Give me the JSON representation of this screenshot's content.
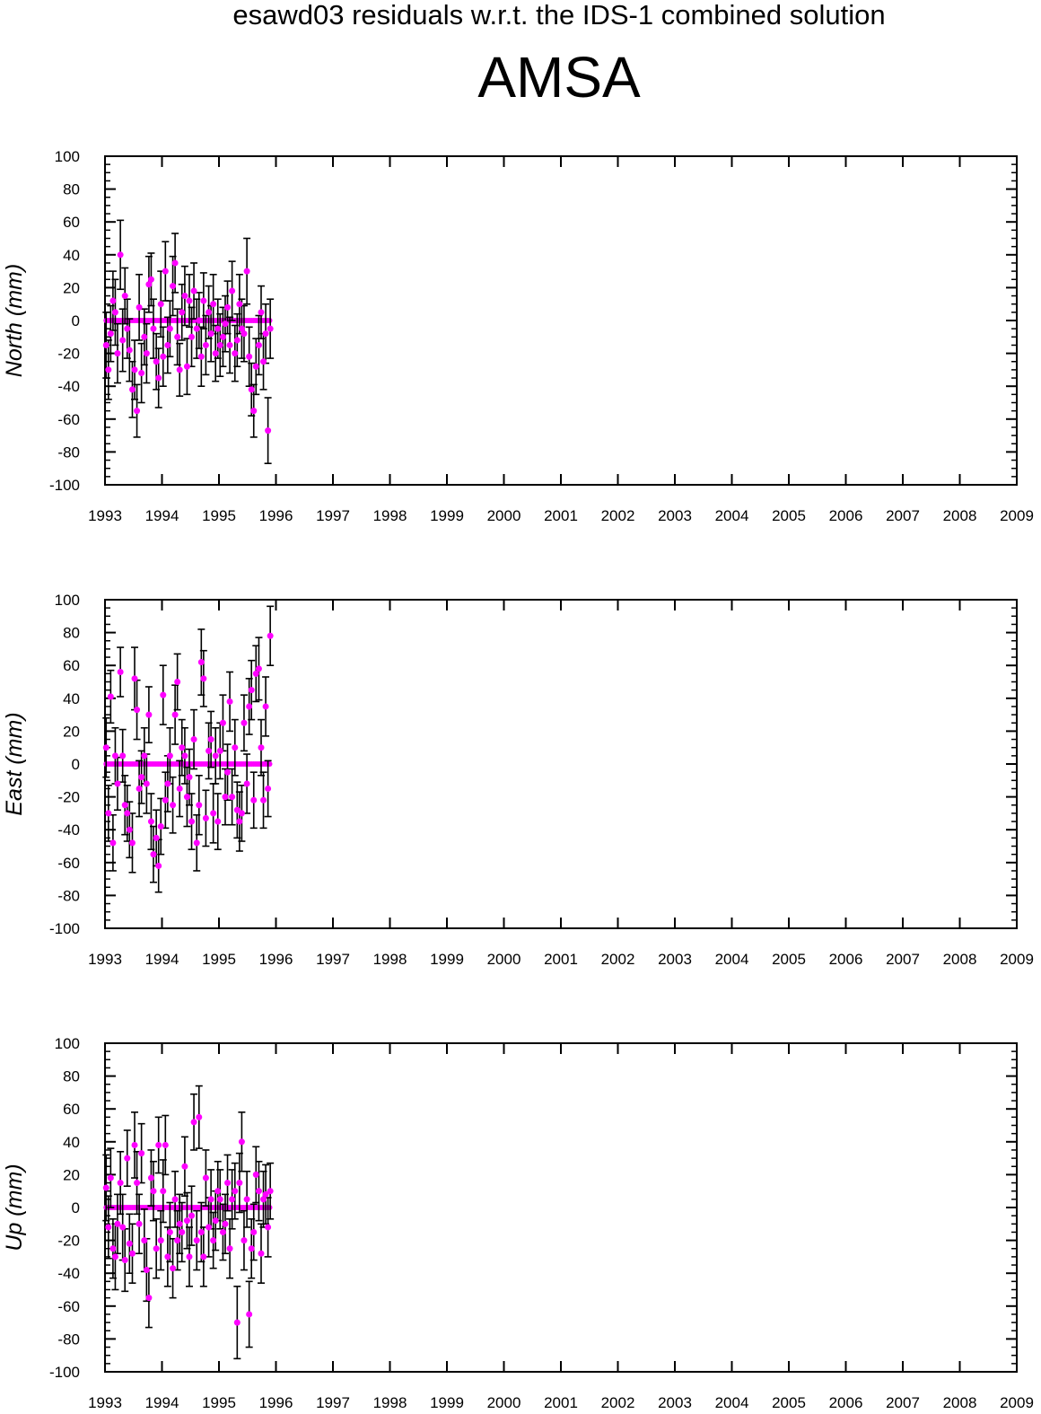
{
  "figure": {
    "subtitle": "esawd03 residuals w.r.t. the IDS-1 combined solution",
    "title": "AMSA"
  },
  "colors": {
    "marker": "#ff00ff",
    "errorbar": "#000000",
    "axis": "#000000",
    "background": "#ffffff"
  },
  "chart_data": [
    {
      "type": "scatter",
      "ylabel": "North (mm)",
      "xlim": [
        1993,
        2009
      ],
      "ylim": [
        -100,
        100
      ],
      "x_ticks": [
        "1993",
        "1994",
        "1995",
        "1996",
        "1997",
        "1998",
        "1999",
        "2000",
        "2001",
        "2002",
        "2003",
        "2004",
        "2005",
        "2006",
        "2007",
        "2008",
        "2009"
      ],
      "y_ticks": [
        "100",
        "80",
        "60",
        "40",
        "20",
        "0",
        "-20",
        "-40",
        "-60",
        "-80",
        "-100"
      ],
      "grid": false,
      "series": [
        {
          "x": [
            1993.02,
            1993.06,
            1993.1,
            1993.14,
            1993.18,
            1993.22,
            1993.27,
            1993.31,
            1993.35,
            1993.39,
            1993.43,
            1993.48,
            1993.52,
            1993.56,
            1993.6,
            1993.64,
            1993.69,
            1993.73,
            1993.77,
            1993.81,
            1993.85,
            1993.9,
            1993.94,
            1993.98,
            1994.02,
            1994.06,
            1994.1,
            1994.14,
            1994.19,
            1994.23,
            1994.27,
            1994.31,
            1994.35,
            1994.4,
            1994.44,
            1994.48,
            1994.52,
            1994.56,
            1994.61,
            1994.65,
            1994.69,
            1994.73,
            1994.77,
            1994.82,
            1994.86,
            1994.9,
            1994.94,
            1994.98,
            1995.02,
            1995.07,
            1995.11,
            1995.15,
            1995.19,
            1995.23,
            1995.28,
            1995.32,
            1995.36,
            1995.4,
            1995.44,
            1995.49,
            1995.53,
            1995.57,
            1995.61,
            1995.65,
            1995.7,
            1995.74,
            1995.78,
            1995.82,
            1995.86,
            1995.9
          ],
          "y": [
            -15,
            -30,
            -8,
            12,
            5,
            -20,
            40,
            -12,
            15,
            -5,
            -18,
            -42,
            -30,
            -55,
            8,
            -32,
            -10,
            -20,
            22,
            25,
            -5,
            -25,
            -35,
            10,
            -22,
            30,
            -15,
            -5,
            21,
            35,
            -10,
            -30,
            5,
            15,
            -28,
            12,
            -10,
            18,
            -5,
            0,
            -22,
            12,
            -15,
            5,
            -8,
            10,
            -20,
            -5,
            -15,
            -10,
            -2,
            8,
            -15,
            18,
            -20,
            -12,
            10,
            -5,
            -8,
            30,
            -22,
            -42,
            -55,
            -28,
            -15,
            5,
            -25,
            -8,
            -67,
            -5
          ],
          "err": [
            20,
            18,
            17,
            18,
            20,
            18,
            21,
            19,
            17,
            18,
            19,
            17,
            18,
            16,
            20,
            18,
            17,
            18,
            17,
            16,
            18,
            17,
            18,
            20,
            18,
            18,
            17,
            17,
            18,
            18,
            17,
            16,
            17,
            18,
            17,
            16,
            18,
            17,
            18,
            17,
            18,
            17,
            18,
            16,
            17,
            18,
            17,
            18,
            19,
            18,
            17,
            16,
            17,
            18,
            17,
            16,
            18,
            18,
            17,
            20,
            18,
            16,
            16,
            17,
            18,
            16,
            17,
            18,
            20,
            18
          ]
        }
      ]
    },
    {
      "type": "scatter",
      "ylabel": "East (mm)",
      "xlim": [
        1993,
        2009
      ],
      "ylim": [
        -100,
        100
      ],
      "x_ticks": [
        "1993",
        "1994",
        "1995",
        "1996",
        "1997",
        "1998",
        "1999",
        "2000",
        "2001",
        "2002",
        "2003",
        "2004",
        "2005",
        "2006",
        "2007",
        "2008",
        "2009"
      ],
      "y_ticks": [
        "100",
        "80",
        "60",
        "40",
        "20",
        "0",
        "-20",
        "-40",
        "-60",
        "-80",
        "-100"
      ],
      "grid": false,
      "series": [
        {
          "x": [
            1993.02,
            1993.06,
            1993.1,
            1993.14,
            1993.18,
            1993.22,
            1993.27,
            1993.31,
            1993.35,
            1993.39,
            1993.43,
            1993.48,
            1993.52,
            1993.56,
            1993.6,
            1993.64,
            1993.69,
            1993.73,
            1993.77,
            1993.81,
            1993.85,
            1993.9,
            1993.94,
            1993.98,
            1994.02,
            1994.06,
            1994.1,
            1994.14,
            1994.19,
            1994.23,
            1994.27,
            1994.31,
            1994.35,
            1994.4,
            1994.44,
            1994.48,
            1994.52,
            1994.56,
            1994.61,
            1994.65,
            1994.69,
            1994.73,
            1994.77,
            1994.82,
            1994.86,
            1994.9,
            1994.94,
            1994.98,
            1995.02,
            1995.07,
            1995.11,
            1995.15,
            1995.19,
            1995.23,
            1995.28,
            1995.32,
            1995.36,
            1995.4,
            1995.44,
            1995.49,
            1995.53,
            1995.57,
            1995.61,
            1995.65,
            1995.7,
            1995.74,
            1995.78,
            1995.82,
            1995.86,
            1995.9
          ],
          "y": [
            10,
            -30,
            41,
            -48,
            5,
            -12,
            56,
            5,
            -25,
            -30,
            -40,
            -48,
            52,
            33,
            -15,
            -8,
            5,
            -12,
            30,
            -35,
            -55,
            -45,
            -62,
            -38,
            42,
            -22,
            -12,
            5,
            -25,
            30,
            50,
            -15,
            10,
            5,
            -20,
            -8,
            -35,
            15,
            -48,
            -25,
            62,
            52,
            -33,
            8,
            15,
            -30,
            5,
            -35,
            8,
            25,
            -20,
            -5,
            38,
            -20,
            10,
            -28,
            -35,
            -30,
            25,
            -12,
            35,
            45,
            -22,
            55,
            58,
            10,
            -22,
            35,
            -15,
            78
          ],
          "err": [
            18,
            17,
            16,
            17,
            17,
            16,
            15,
            16,
            18,
            17,
            17,
            18,
            19,
            18,
            17,
            16,
            17,
            18,
            17,
            17,
            17,
            17,
            16,
            17,
            18,
            17,
            17,
            17,
            17,
            18,
            17,
            17,
            17,
            17,
            18,
            17,
            17,
            18,
            17,
            18,
            20,
            17,
            17,
            17,
            17,
            18,
            17,
            17,
            17,
            17,
            17,
            17,
            18,
            17,
            17,
            17,
            18,
            17,
            17,
            18,
            17,
            18,
            17,
            17,
            19,
            17,
            17,
            18,
            17,
            18
          ]
        }
      ]
    },
    {
      "type": "scatter",
      "ylabel": "Up (mm)",
      "xlim": [
        1993,
        2009
      ],
      "ylim": [
        -100,
        100
      ],
      "x_ticks": [
        "1993",
        "1994",
        "1995",
        "1996",
        "1997",
        "1998",
        "1999",
        "2000",
        "2001",
        "2002",
        "2003",
        "2004",
        "2005",
        "2006",
        "2007",
        "2008",
        "2009"
      ],
      "y_ticks": [
        "100",
        "80",
        "60",
        "40",
        "20",
        "0",
        "-20",
        "-40",
        "-60",
        "-80",
        "-100"
      ],
      "grid": false,
      "series": [
        {
          "x": [
            1993.02,
            1993.06,
            1993.1,
            1993.14,
            1993.18,
            1993.22,
            1993.27,
            1993.31,
            1993.35,
            1993.39,
            1993.43,
            1993.48,
            1993.52,
            1993.56,
            1993.6,
            1993.64,
            1993.69,
            1993.73,
            1993.77,
            1993.81,
            1993.85,
            1993.9,
            1993.94,
            1993.98,
            1994.02,
            1994.06,
            1994.1,
            1994.14,
            1994.19,
            1994.23,
            1994.27,
            1994.31,
            1994.35,
            1994.4,
            1994.44,
            1994.48,
            1994.52,
            1994.56,
            1994.61,
            1994.65,
            1994.69,
            1994.73,
            1994.77,
            1994.82,
            1994.86,
            1994.9,
            1994.94,
            1994.98,
            1995.02,
            1995.07,
            1995.11,
            1995.15,
            1995.19,
            1995.23,
            1995.28,
            1995.32,
            1995.36,
            1995.4,
            1995.44,
            1995.49,
            1995.53,
            1995.57,
            1995.61,
            1995.65,
            1995.7,
            1995.74,
            1995.78,
            1995.82,
            1995.86,
            1995.9
          ],
          "y": [
            12,
            -12,
            18,
            -25,
            -30,
            -10,
            15,
            -12,
            -32,
            30,
            -22,
            -28,
            38,
            15,
            -10,
            33,
            -20,
            -38,
            -55,
            18,
            10,
            -25,
            38,
            -20,
            10,
            38,
            -30,
            -15,
            -37,
            5,
            -20,
            -10,
            -15,
            25,
            -8,
            -30,
            -5,
            52,
            -20,
            55,
            -15,
            -30,
            18,
            -12,
            5,
            -20,
            -8,
            10,
            5,
            -15,
            -10,
            15,
            -25,
            5,
            10,
            -70,
            15,
            40,
            -20,
            5,
            -65,
            -25,
            -15,
            20,
            10,
            -28,
            5,
            8,
            -12,
            10
          ],
          "err": [
            20,
            19,
            18,
            18,
            20,
            18,
            19,
            20,
            19,
            17,
            18,
            18,
            20,
            19,
            18,
            18,
            19,
            19,
            18,
            17,
            18,
            18,
            17,
            18,
            19,
            18,
            18,
            18,
            18,
            17,
            18,
            18,
            18,
            18,
            17,
            18,
            18,
            17,
            18,
            19,
            18,
            18,
            17,
            18,
            18,
            17,
            18,
            18,
            18,
            17,
            18,
            17,
            18,
            18,
            17,
            22,
            18,
            18,
            18,
            17,
            20,
            18,
            17,
            17,
            18,
            18,
            17,
            18,
            18,
            17
          ]
        }
      ]
    }
  ]
}
